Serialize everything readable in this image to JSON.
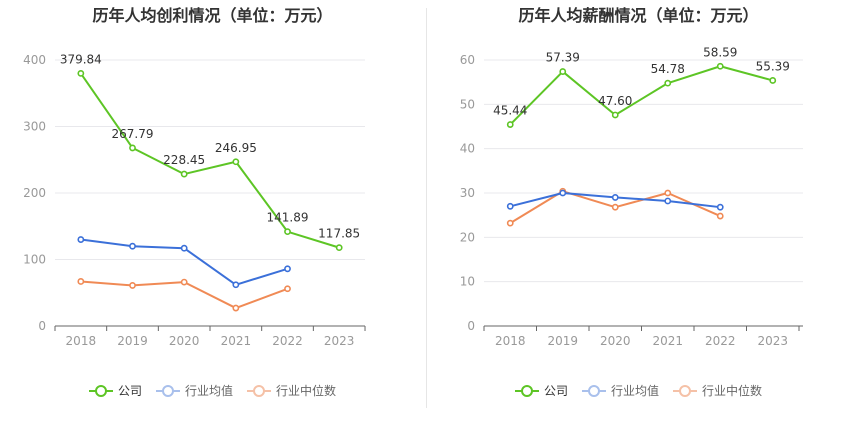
{
  "colors": {
    "company": "#5dc525",
    "industry_avg": "#3b70d9",
    "industry_median": "#f08a55",
    "grid": "#e8e8ec",
    "axis_text": "#999999"
  },
  "chart_data": [
    {
      "type": "line",
      "title": "历年人均创利情况（单位：万元）",
      "categories": [
        "2018",
        "2019",
        "2020",
        "2021",
        "2022",
        "2023"
      ],
      "ylim": [
        0,
        400
      ],
      "yticks": [
        0,
        100,
        200,
        300,
        400
      ],
      "grid": true,
      "legend_position": "bottom",
      "series": [
        {
          "name": "公司",
          "values": [
            379.84,
            267.79,
            228.45,
            246.95,
            141.89,
            117.85
          ],
          "labels": [
            "379.84",
            "267.79",
            "228.45",
            "246.95",
            "141.89",
            "117.85"
          ]
        },
        {
          "name": "行业均值",
          "values": [
            130,
            120,
            117,
            62,
            86,
            null
          ]
        },
        {
          "name": "行业中位数",
          "values": [
            67,
            61,
            66,
            27,
            56,
            null
          ]
        }
      ]
    },
    {
      "type": "line",
      "title": "历年人均薪酬情况（单位：万元）",
      "categories": [
        "2018",
        "2019",
        "2020",
        "2021",
        "2022",
        "2023"
      ],
      "ylim": [
        0,
        60
      ],
      "yticks": [
        0,
        10,
        20,
        30,
        40,
        50,
        60
      ],
      "grid": true,
      "legend_position": "bottom",
      "series": [
        {
          "name": "公司",
          "values": [
            45.44,
            57.39,
            47.6,
            54.78,
            58.59,
            55.39
          ],
          "labels": [
            "45.44",
            "57.39",
            "47.60",
            "54.78",
            "58.59",
            "55.39"
          ]
        },
        {
          "name": "行业均值",
          "values": [
            27,
            30,
            29,
            28.2,
            26.8,
            null
          ]
        },
        {
          "name": "行业中位数",
          "values": [
            23.2,
            30.4,
            26.8,
            30,
            24.8,
            null
          ]
        }
      ]
    }
  ]
}
